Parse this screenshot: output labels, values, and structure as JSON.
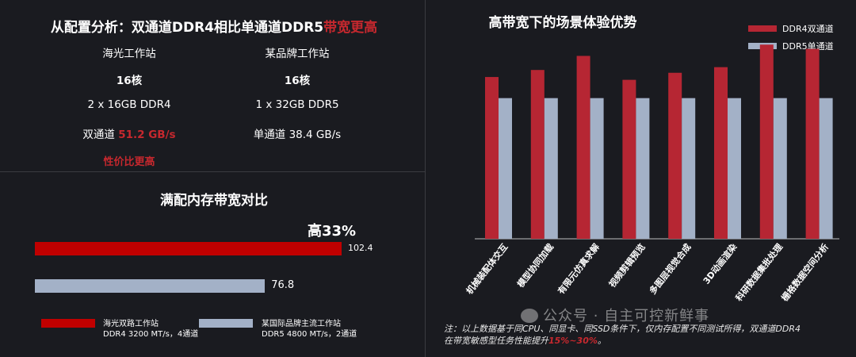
{
  "left_top": {
    "title_prefix": "从配置分析：双通道DDR4相比单通道DDR5",
    "title_highlight": "带宽更高",
    "col1": {
      "name": "海光工作站",
      "cores": "16核",
      "memory": "2 x 16GB DDR4",
      "channel_prefix": "双通道",
      "channel_value": "51.2 GB/s",
      "note": "性价比更高"
    },
    "col2": {
      "name": "某品牌工作站",
      "cores": "16核",
      "memory": "1 x 32GB DDR5",
      "channel": "单通道 38.4 GB/s"
    }
  },
  "left_bottom": {
    "title": "满配内存带宽对比",
    "callout": "高33%",
    "legend": [
      {
        "line1": "海光双路工作站",
        "line2": "DDR4 3200 MT/s，4通道",
        "color": "#c00000"
      },
      {
        "line1": "某国际品牌主流工作站",
        "line2": "DDR5 4800 MT/s，2通道",
        "color": "#a3b1c7"
      }
    ]
  },
  "chart_data": [
    {
      "type": "bar",
      "orientation": "horizontal",
      "title": "满配内存带宽对比",
      "series": [
        {
          "name": "海光双路工作站 DDR4 3200 MT/s，4通道",
          "values": [
            102.4
          ],
          "color": "#c00000"
        },
        {
          "name": "某国际品牌主流工作站 DDR5 4800 MT/s，2通道",
          "values": [
            76.8
          ],
          "color": "#a3b1c7"
        }
      ],
      "data_labels": [
        "102.4",
        "76.8"
      ],
      "xlim": [
        0,
        102.4
      ]
    },
    {
      "type": "bar",
      "title": "高带宽下的场景体验优势",
      "categories": [
        "机械装配体交互",
        "模型协同加载",
        "有限元仿真求解",
        "视频剪辑预览",
        "多图层视觉合成",
        "3D动画渲染",
        "科研数据集批处理",
        "栅格数据空间分析"
      ],
      "series": [
        {
          "name": "DDR4双通道",
          "values": [
            1.15,
            1.2,
            1.3,
            1.13,
            1.18,
            1.22,
            1.38,
            1.35
          ],
          "color": "#b62633"
        },
        {
          "name": "DDR5单通道",
          "values": [
            1,
            1,
            1,
            1,
            1,
            1,
            1,
            1
          ],
          "color": "#a3b1c7"
        }
      ],
      "legend_position": "top-right",
      "ylim": [
        0,
        1.5
      ],
      "grid": false
    }
  ],
  "right": {
    "note_line1": "注：以上数据基于同CPU、同显卡、同SSD条件下，仅内存配置不同测试所得，双通道DDR4",
    "note_line2_prefix": "在带宽敏感型任务性能提升",
    "note_line2_highlight": "15%~30%",
    "note_line2_suffix": "。"
  },
  "watermark": "公众号 · 自主可控新鲜事"
}
